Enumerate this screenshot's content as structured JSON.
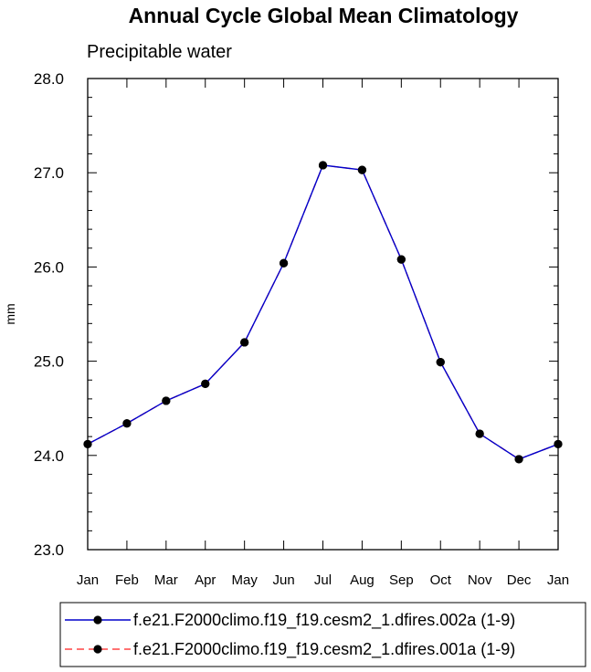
{
  "chart_data": {
    "type": "line",
    "title": "Annual Cycle Global Mean Climatology",
    "subtitle": "Precipitable water",
    "xlabel": "",
    "ylabel": "mm",
    "categories": [
      "Jan",
      "Feb",
      "Mar",
      "Apr",
      "May",
      "Jun",
      "Jul",
      "Aug",
      "Sep",
      "Oct",
      "Nov",
      "Dec",
      "Jan"
    ],
    "ylim": [
      23.0,
      28.0
    ],
    "yticks": [
      "23.0",
      "24.0",
      "25.0",
      "26.0",
      "27.0",
      "28.0"
    ],
    "series": [
      {
        "name": "f.e21.F2000climo.f19_f19.cesm2_1.dfires.002a (1-9)",
        "color": "#0000cc",
        "marker_color": "#000000",
        "line_style": "solid",
        "values": [
          24.12,
          24.34,
          24.58,
          24.76,
          25.2,
          26.04,
          27.08,
          27.03,
          26.08,
          24.99,
          24.23,
          23.96,
          24.12
        ]
      },
      {
        "name": "f.e21.F2000climo.f19_f19.cesm2_1.dfires.001a (1-9)",
        "color": "#ff4444",
        "marker_color": "#000000",
        "line_style": "dashed",
        "values": [
          24.12,
          24.34,
          24.58,
          24.76,
          25.2,
          26.04,
          27.08,
          27.03,
          26.08,
          24.99,
          24.23,
          23.96,
          24.12
        ]
      }
    ],
    "legend": {
      "placement": "bottom"
    },
    "grid": false
  }
}
